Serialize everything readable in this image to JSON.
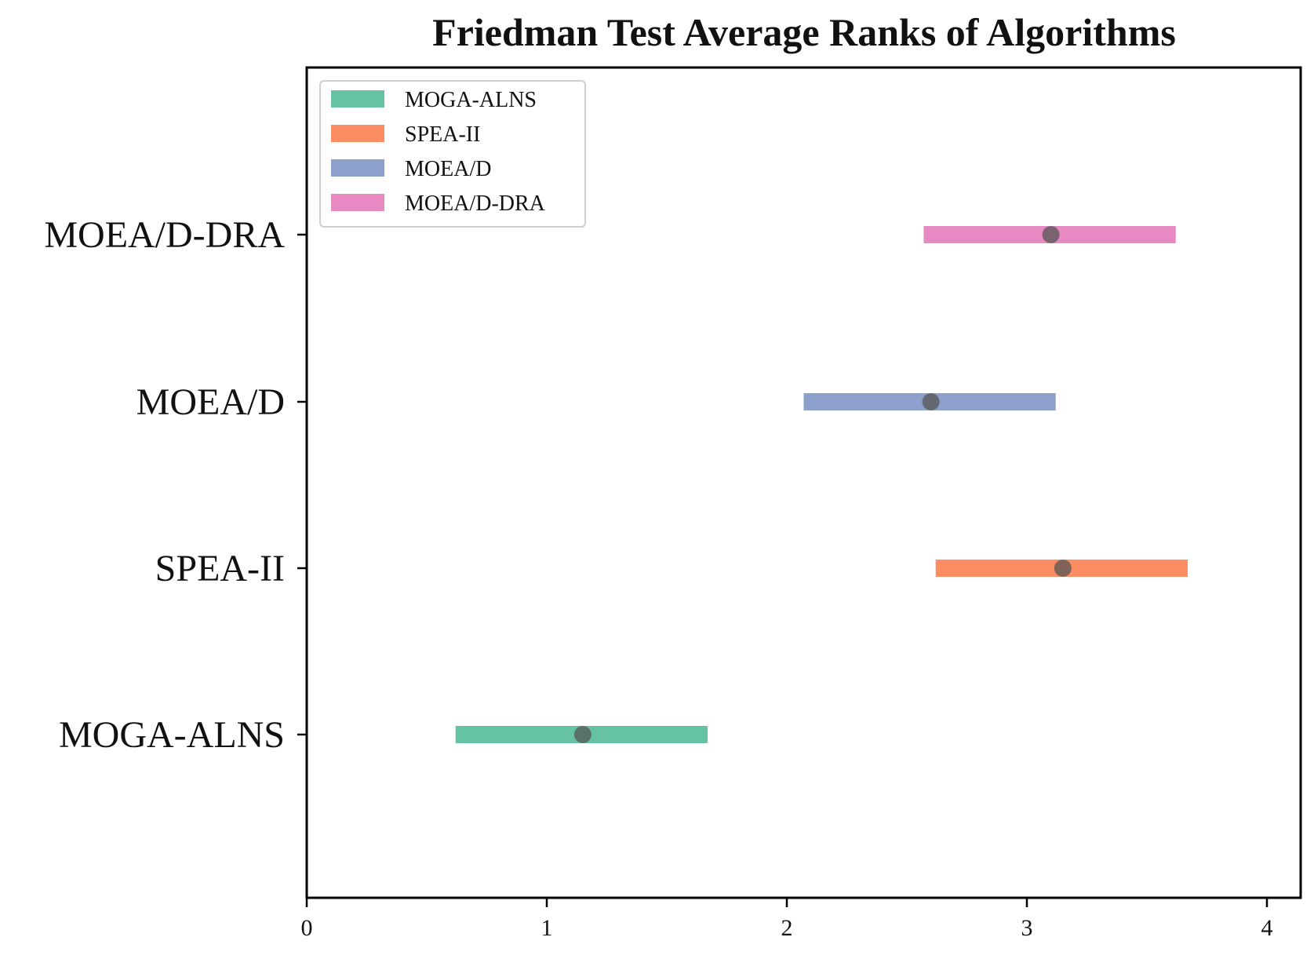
{
  "chart_data": {
    "type": "errorbar",
    "orientation": "horizontal",
    "title": "Friedman Test Average Ranks of Algorithms",
    "xlabel": "",
    "ylabel": "",
    "xlim": [
      0,
      4.1
    ],
    "x_ticks": [
      0,
      1,
      2,
      3,
      4
    ],
    "x_tick_labels": [
      "0",
      "1",
      "2",
      "3",
      "4"
    ],
    "categories": [
      "MOGA-ALNS",
      "SPEA-II",
      "MOEA/D",
      "MOEA/D-DRA"
    ],
    "series": [
      {
        "name": "MOGA-ALNS",
        "rank": 1.15,
        "low": 0.62,
        "high": 1.67,
        "color": "#66c2a5"
      },
      {
        "name": "SPEA-II",
        "rank": 3.15,
        "low": 2.62,
        "high": 3.67,
        "color": "#fc8d62"
      },
      {
        "name": "MOEA/D",
        "rank": 2.6,
        "low": 2.07,
        "high": 3.12,
        "color": "#8da0cb"
      },
      {
        "name": "MOEA/D-DRA",
        "rank": 3.1,
        "low": 2.57,
        "high": 3.62,
        "color": "#e78ac3"
      }
    ],
    "marker_color": "#555555",
    "grid": false,
    "legend": {
      "position": "upper-left",
      "entries": [
        "MOGA-ALNS",
        "SPEA-II",
        "MOEA/D",
        "MOEA/D-DRA"
      ]
    }
  }
}
